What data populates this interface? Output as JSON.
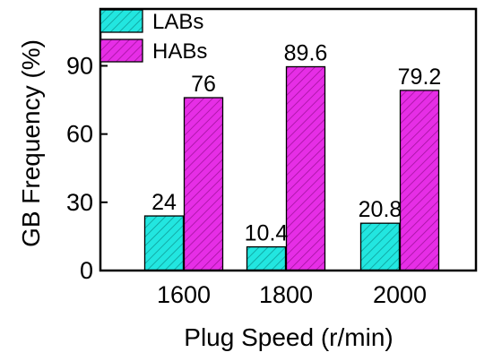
{
  "chart_data": {
    "type": "bar",
    "title": "",
    "xlabel": "Plug Speed (r/min)",
    "ylabel": "GB Frequency (%)",
    "categories": [
      "1600",
      "1800",
      "2000"
    ],
    "series": [
      {
        "name": "LABs",
        "values": [
          24,
          10.4,
          20.8
        ],
        "labels": [
          "24",
          "10.4",
          "20.8"
        ],
        "color": "#22e6e0"
      },
      {
        "name": "HABs",
        "values": [
          76,
          89.6,
          79.2
        ],
        "labels": [
          "76",
          "89.6",
          "79.2"
        ],
        "color": "#e62ee6"
      }
    ],
    "ylim": [
      0,
      115
    ],
    "yticks": [
      0,
      30,
      60,
      90
    ],
    "ytick_labels": [
      "0",
      "30",
      "60",
      "90"
    ],
    "grid": false,
    "legend_position": "top-left",
    "bar_pattern": "diagonal-hatch"
  }
}
